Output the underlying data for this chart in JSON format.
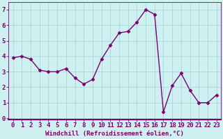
{
  "x": [
    0,
    1,
    2,
    3,
    4,
    5,
    6,
    7,
    8,
    9,
    10,
    11,
    12,
    13,
    14,
    15,
    16,
    17,
    18,
    19,
    20,
    21,
    22,
    23
  ],
  "y": [
    3.9,
    4.0,
    3.8,
    3.1,
    3.0,
    3.0,
    3.2,
    2.6,
    2.2,
    2.5,
    3.8,
    4.7,
    5.5,
    5.6,
    6.2,
    7.0,
    6.7,
    0.4,
    2.1,
    2.9,
    1.8,
    1.0,
    1.0,
    1.5
  ],
  "line_color": "#7B0070",
  "marker": "D",
  "marker_size": 2.5,
  "line_width": 1.0,
  "bg_color": "#cff0f0",
  "grid_color": "#a8d8d8",
  "xlabel": "Windchill (Refroidissement éolien,°C)",
  "xlim": [
    -0.5,
    23.5
  ],
  "ylim": [
    -0.1,
    7.5
  ],
  "yticks": [
    0,
    1,
    2,
    3,
    4,
    5,
    6,
    7
  ],
  "xticks": [
    0,
    1,
    2,
    3,
    4,
    5,
    6,
    7,
    8,
    9,
    10,
    11,
    12,
    13,
    14,
    15,
    16,
    17,
    18,
    19,
    20,
    21,
    22,
    23
  ],
  "xlabel_fontsize": 6.5,
  "tick_fontsize": 6.5,
  "tick_color": "#7B0070",
  "axis_color": "#7B0070",
  "spine_bottom_color": "#7B0070"
}
